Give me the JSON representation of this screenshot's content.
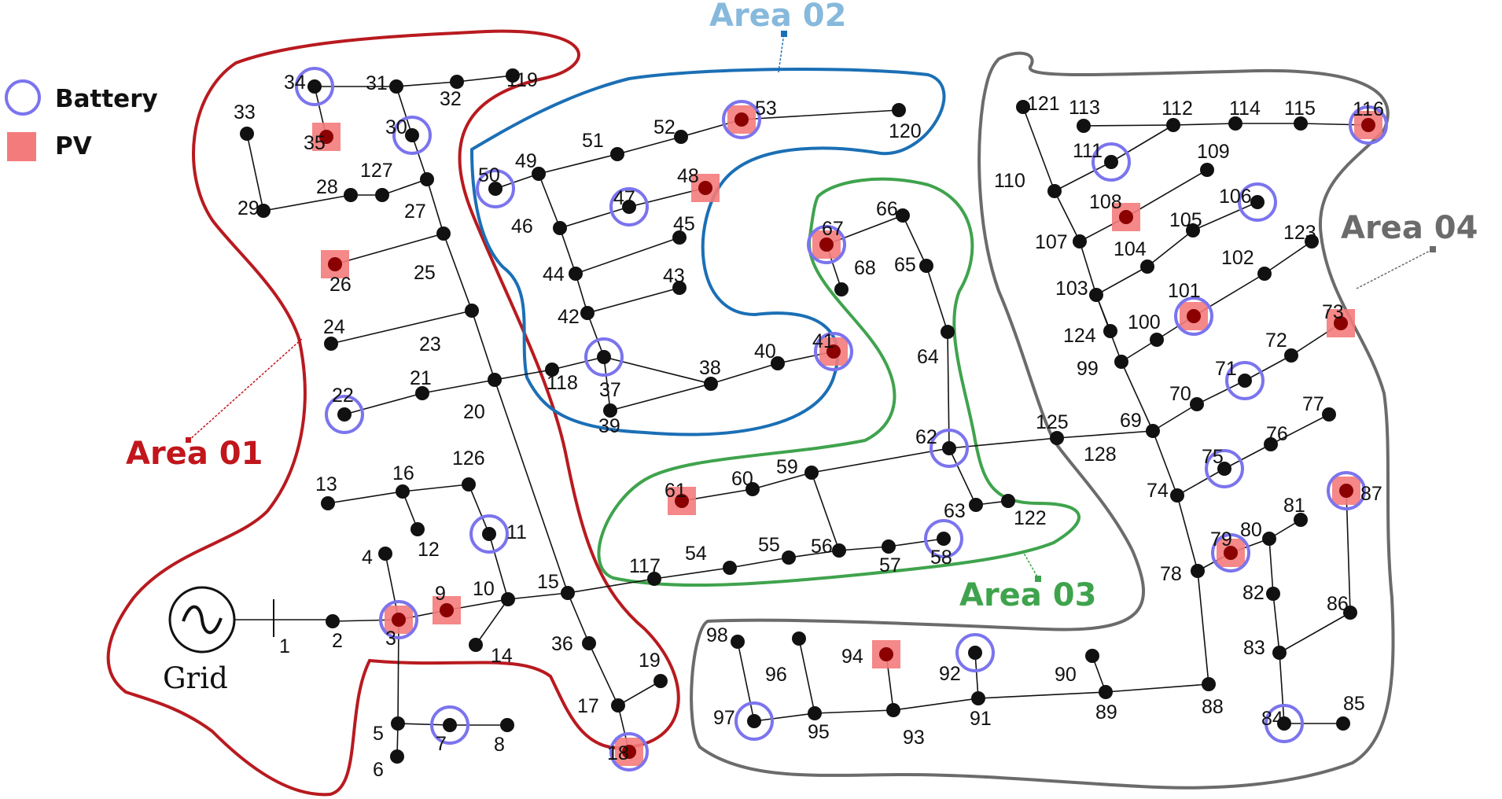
{
  "legend": {
    "battery_label": "Battery",
    "pv_label": "PV",
    "battery_color": "#7b74ee",
    "pv_color": "#f47b7b"
  },
  "grid": {
    "label": "Grid"
  },
  "areas": [
    {
      "name": "Area 01",
      "color": "#c0161c"
    },
    {
      "name": "Area 02",
      "color": "#86b9dc"
    },
    {
      "name": "Area 03",
      "color": "#3fa34d"
    },
    {
      "name": "Area 04",
      "color": "#6b6b6b"
    }
  ],
  "area_line_colors": [
    "#b81a1f",
    "#1b6fb5",
    "#3fa34d",
    "#6b6b6b"
  ],
  "nodes": [
    "1",
    "2",
    "3",
    "4",
    "5",
    "6",
    "7",
    "8",
    "9",
    "10",
    "11",
    "12",
    "13",
    "14",
    "15",
    "16",
    "17",
    "18",
    "19",
    "20",
    "21",
    "22",
    "23",
    "24",
    "25",
    "26",
    "27",
    "28",
    "29",
    "30",
    "31",
    "32",
    "33",
    "34",
    "35",
    "36",
    "37",
    "38",
    "39",
    "40",
    "41",
    "42",
    "43",
    "44",
    "45",
    "46",
    "47",
    "48",
    "49",
    "50",
    "51",
    "52",
    "53",
    "54",
    "55",
    "56",
    "57",
    "58",
    "59",
    "60",
    "61",
    "62",
    "63",
    "64",
    "65",
    "66",
    "67",
    "68",
    "69",
    "70",
    "71",
    "72",
    "73",
    "74",
    "75",
    "76",
    "77",
    "78",
    "79",
    "80",
    "81",
    "82",
    "83",
    "84",
    "85",
    "86",
    "87",
    "88",
    "89",
    "90",
    "91",
    "92",
    "93",
    "94",
    "95",
    "96",
    "97",
    "98",
    "99",
    "100",
    "101",
    "102",
    "103",
    "104",
    "105",
    "106",
    "107",
    "108",
    "109",
    "110",
    "111",
    "112",
    "113",
    "114",
    "115",
    "116",
    "117",
    "118",
    "119",
    "120",
    "121",
    "122",
    "123",
    "124",
    "125",
    "126",
    "127",
    "128"
  ],
  "batteries": [
    "3",
    "7",
    "11",
    "18",
    "22",
    "30",
    "34",
    "37",
    "41",
    "47",
    "50",
    "53",
    "58",
    "62",
    "67",
    "71",
    "75",
    "79",
    "84",
    "87",
    "92",
    "97",
    "101",
    "106",
    "111",
    "116"
  ],
  "pv": [
    "3",
    "9",
    "18",
    "26",
    "35",
    "41",
    "48",
    "53",
    "61",
    "67",
    "73",
    "79",
    "87",
    "94",
    "101",
    "108",
    "116"
  ]
}
